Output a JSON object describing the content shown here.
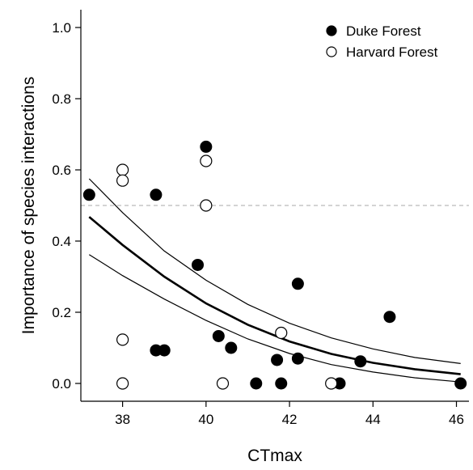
{
  "chart_data": {
    "type": "scatter",
    "xlabel": "CTmax",
    "ylabel": "Importance of species interactions",
    "xlim": [
      37.0,
      46.3
    ],
    "ylim": [
      -0.05,
      1.05
    ],
    "xticks": [
      38,
      40,
      42,
      44,
      46
    ],
    "yticks": [
      0.0,
      0.2,
      0.4,
      0.6,
      0.8,
      1.0
    ],
    "ytick_labels": [
      "0.0",
      "0.2",
      "0.4",
      "0.6",
      "0.8",
      "1.0"
    ],
    "grid": false,
    "legend_position": "top-right",
    "reference_line": {
      "y": 0.5,
      "style": "dashed",
      "color": "#bbbbbb"
    },
    "series": [
      {
        "name": "Duke Forest",
        "marker": "filled-circle",
        "color": "#000000",
        "points": [
          [
            37.2,
            0.53
          ],
          [
            38.8,
            0.53
          ],
          [
            40.0,
            0.665
          ],
          [
            39.8,
            0.333
          ],
          [
            38.8,
            0.093
          ],
          [
            39.0,
            0.093
          ],
          [
            40.3,
            0.133
          ],
          [
            40.6,
            0.1
          ],
          [
            41.2,
            0.0
          ],
          [
            41.7,
            0.066
          ],
          [
            41.8,
            0.0
          ],
          [
            42.2,
            0.28
          ],
          [
            42.2,
            0.07
          ],
          [
            43.2,
            0.0
          ],
          [
            43.7,
            0.062
          ],
          [
            44.4,
            0.187
          ],
          [
            46.1,
            0.0
          ]
        ]
      },
      {
        "name": "Harvard Forest",
        "marker": "open-circle",
        "color": "#000000",
        "points": [
          [
            38.0,
            0.6
          ],
          [
            38.0,
            0.57
          ],
          [
            40.0,
            0.625
          ],
          [
            40.0,
            0.5
          ],
          [
            38.0,
            0.123
          ],
          [
            38.0,
            0.0
          ],
          [
            40.4,
            0.0
          ],
          [
            41.8,
            0.142
          ],
          [
            43.0,
            0.0
          ]
        ]
      }
    ],
    "fit": {
      "model": "logistic",
      "x": [
        37.2,
        38,
        39,
        40,
        41,
        42,
        43,
        44,
        45,
        46.1
      ],
      "mean": [
        0.468,
        0.389,
        0.3,
        0.225,
        0.165,
        0.118,
        0.083,
        0.058,
        0.04,
        0.026
      ],
      "upper": [
        0.575,
        0.48,
        0.372,
        0.29,
        0.222,
        0.169,
        0.128,
        0.097,
        0.073,
        0.056
      ],
      "lower": [
        0.362,
        0.303,
        0.237,
        0.177,
        0.125,
        0.084,
        0.053,
        0.032,
        0.016,
        0.004
      ]
    }
  }
}
